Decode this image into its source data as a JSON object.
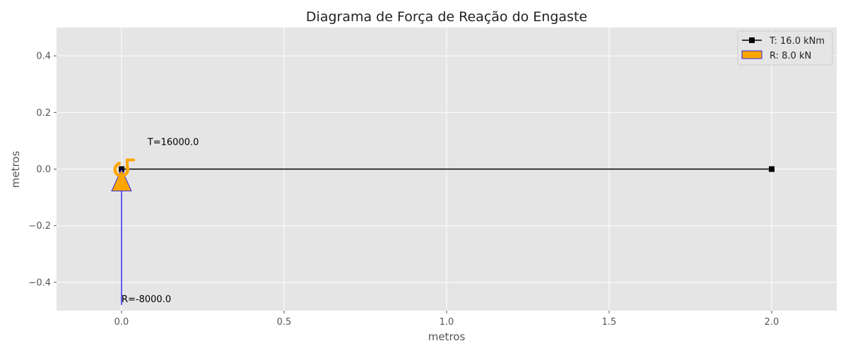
{
  "chart_data": {
    "type": "line",
    "title": "Diagrama de Força de Reação do Engaste",
    "xlabel": "metros",
    "ylabel": "metros",
    "xlim": [
      -0.2,
      2.2
    ],
    "ylim": [
      -0.5,
      0.5
    ],
    "xticks": [
      0.0,
      0.5,
      1.0,
      1.5,
      2.0
    ],
    "xtick_labels": [
      "0.0",
      "0.5",
      "1.0",
      "1.5",
      "2.0"
    ],
    "yticks": [
      0.4,
      0.2,
      0.0,
      -0.2,
      -0.4
    ],
    "ytick_labels": [
      "0.4",
      "0.2",
      "0.0",
      "−0.2",
      "−0.4"
    ],
    "grid": true,
    "legend_position": "top-right",
    "series": [
      {
        "name": "T: 16.0 kNm",
        "type": "line",
        "x": [
          0.0,
          2.0
        ],
        "y": [
          0.0,
          0.0
        ],
        "color": "#000000",
        "marker": "square"
      },
      {
        "name": "R: 8.0 kN",
        "type": "arrow",
        "x": 0.0,
        "y": -0.48,
        "dy": 0.48,
        "color": "#FFA500",
        "edge_color": "#0000FF"
      }
    ],
    "moment_symbol": {
      "x": 0.0,
      "y": 0.0,
      "color": "#FFA500"
    },
    "annotations": [
      {
        "text": "T=16000.0",
        "x": 0.08,
        "y": 0.085
      },
      {
        "text": "R=-8000.0",
        "x": 0.0,
        "y": -0.47
      }
    ]
  },
  "colors": {
    "plot_background": "#E5E5E5",
    "grid": "#FFFFFF",
    "text": "#555555"
  }
}
